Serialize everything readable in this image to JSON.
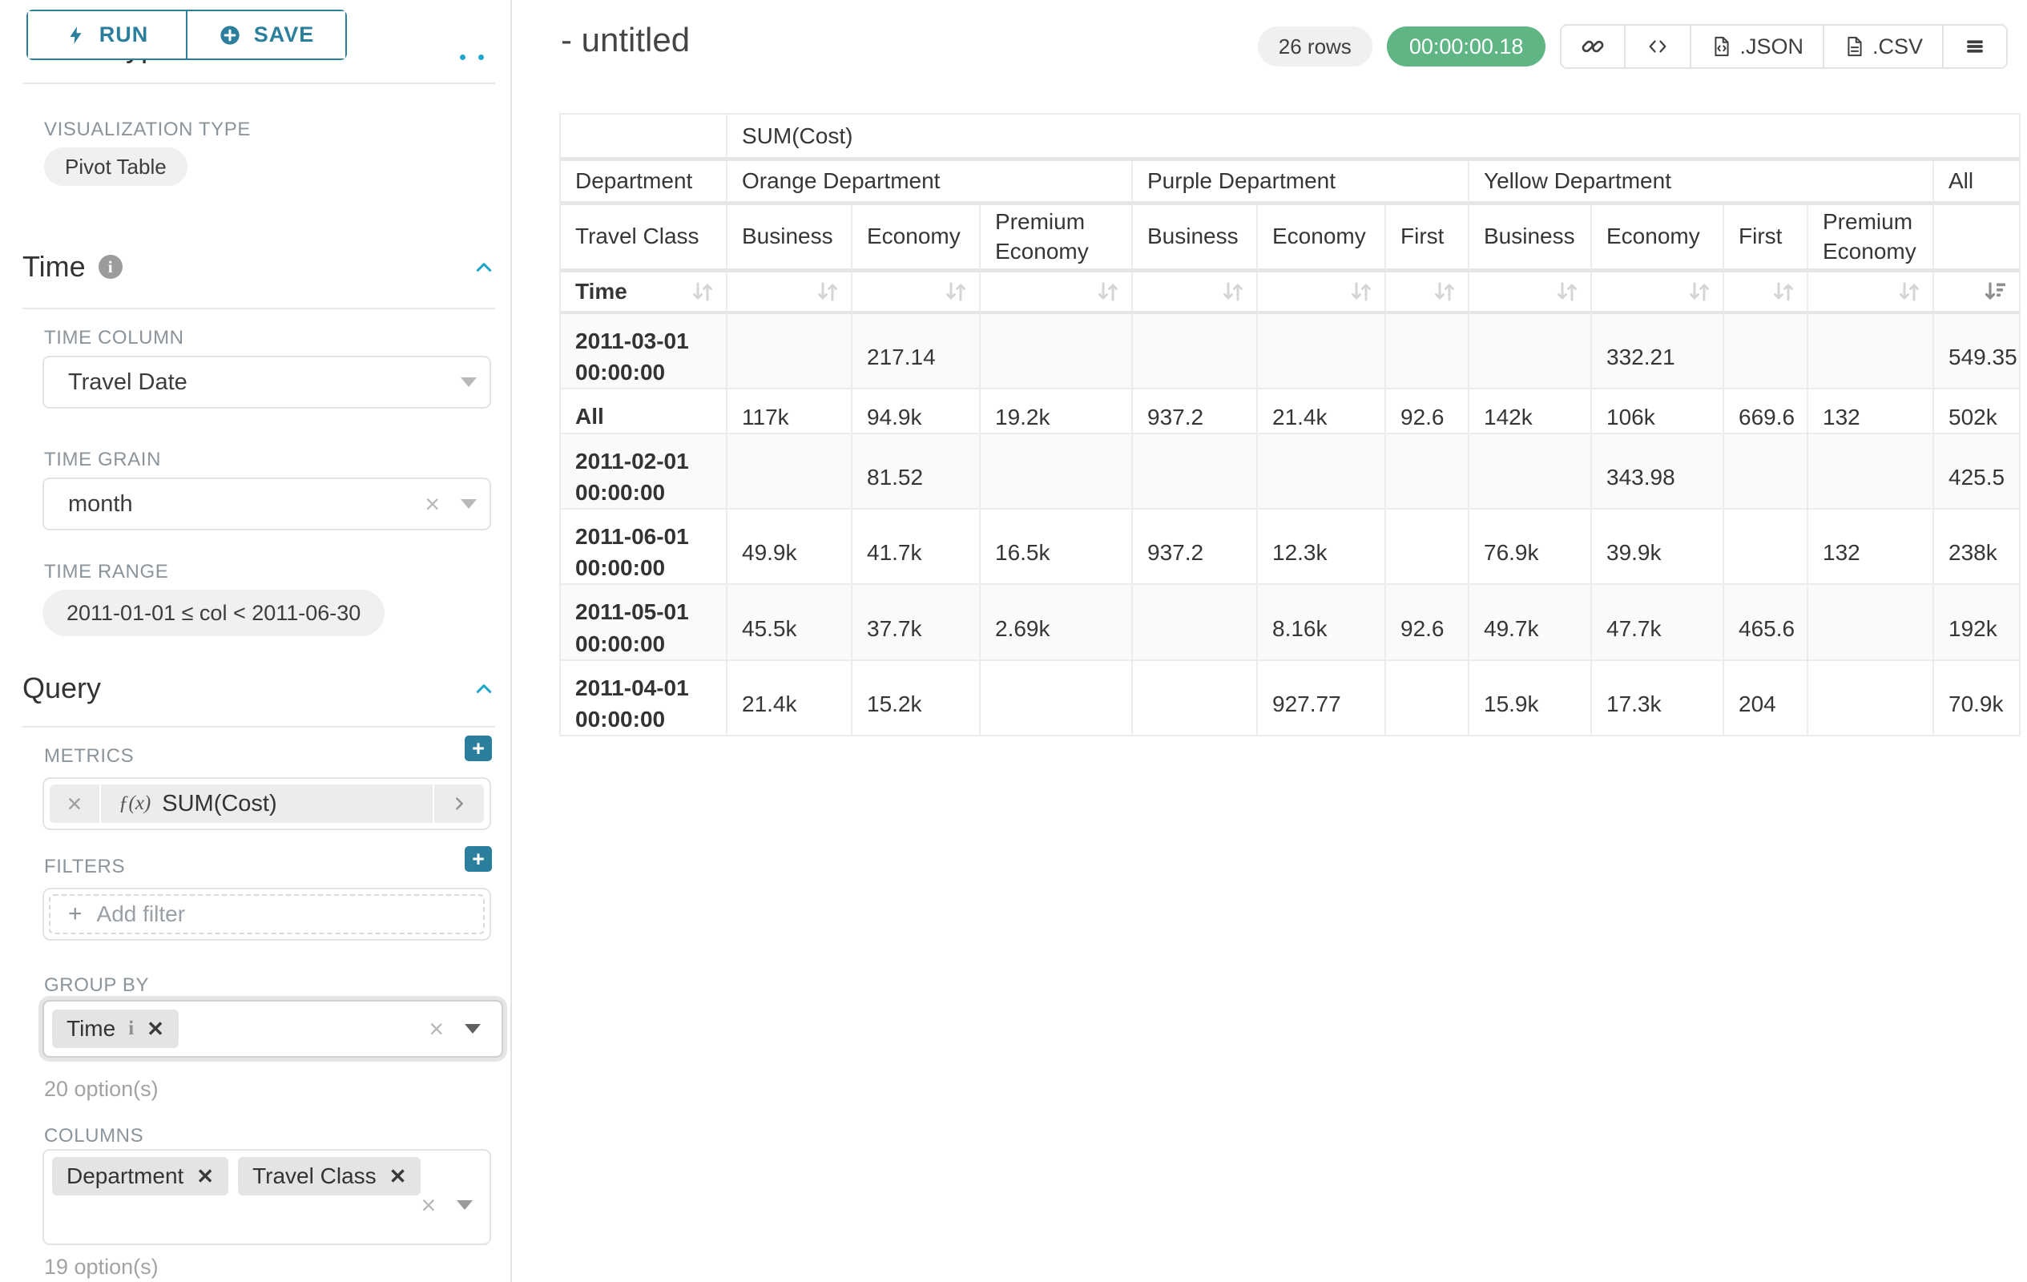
{
  "colors": {
    "teal": "#2b7f9d",
    "blue": "#20a7c9",
    "green": "#5fb584",
    "chip": "#e4e4e4",
    "border": "#e3e3e3",
    "label": "#8b949b",
    "text": "#363636",
    "muted": "#9c9c9c",
    "sort-light": "#d5d5d5",
    "sort-dark": "#8f8f8f",
    "stripe": "#fafafa",
    "pill": "#f0f0f0"
  },
  "sidebar": {
    "run_label": "RUN",
    "save_label": "SAVE",
    "chart_type_title": "Chart Type",
    "viz": {
      "label": "VISUALIZATION TYPE",
      "value": "Pivot Table"
    },
    "time": {
      "title": "Time",
      "column_label": "TIME COLUMN",
      "column_value": "Travel Date",
      "grain_label": "TIME GRAIN",
      "grain_value": "month",
      "range_label": "TIME RANGE",
      "range_value": "2011-01-01 ≤ col < 2011-06-30"
    },
    "query": {
      "title": "Query",
      "metrics_label": "METRICS",
      "metric_fx": "ƒ(x)",
      "metric_value": "SUM(Cost)",
      "filters_label": "FILTERS",
      "add_filter_label": "Add filter",
      "group_by_label": "GROUP BY",
      "group_by_chips": [
        {
          "label": "Time",
          "info": true
        }
      ],
      "group_by_options": "20 option(s)",
      "columns_label": "COLUMNS",
      "columns_chips": [
        {
          "label": "Department"
        },
        {
          "label": "Travel Class"
        }
      ],
      "columns_options": "19 option(s)"
    }
  },
  "header": {
    "title": "- untitled",
    "rows_badge": "26 rows",
    "timer_badge": "00:00:00.18",
    "export_json_label": ".JSON",
    "export_csv_label": ".CSV"
  },
  "chart_data": {
    "type": "table",
    "title": "SUM(Cost)",
    "corner_labels": {
      "row2": "Department",
      "row3": "Travel Class",
      "row4": "Time"
    },
    "column_groups": [
      {
        "label": "Orange Department",
        "children": [
          "Business",
          "Economy",
          "Premium Economy"
        ]
      },
      {
        "label": "Purple Department",
        "children": [
          "Business",
          "Economy",
          "First"
        ]
      },
      {
        "label": "Yellow Department",
        "children": [
          "Business",
          "Economy",
          "First",
          "Premium Economy"
        ]
      },
      {
        "label": "All",
        "children": [
          ""
        ]
      }
    ],
    "sort": {
      "column": "All",
      "direction": "desc"
    },
    "rows": [
      {
        "label": "2011-03-01 00:00:00",
        "values": [
          "",
          "217.14",
          "",
          "",
          "",
          "",
          "",
          "332.21",
          "",
          "",
          "549.35"
        ]
      },
      {
        "label": "All",
        "values": [
          "117k",
          "94.9k",
          "19.2k",
          "937.2",
          "21.4k",
          "92.6",
          "142k",
          "106k",
          "669.6",
          "132",
          "502k"
        ]
      },
      {
        "label": "2011-02-01 00:00:00",
        "values": [
          "",
          "81.52",
          "",
          "",
          "",
          "",
          "",
          "343.98",
          "",
          "",
          "425.5"
        ]
      },
      {
        "label": "2011-06-01 00:00:00",
        "values": [
          "49.9k",
          "41.7k",
          "16.5k",
          "937.2",
          "12.3k",
          "",
          "76.9k",
          "39.9k",
          "",
          "132",
          "238k"
        ]
      },
      {
        "label": "2011-05-01 00:00:00",
        "values": [
          "45.5k",
          "37.7k",
          "2.69k",
          "",
          "8.16k",
          "92.6",
          "49.7k",
          "47.7k",
          "465.6",
          "",
          "192k"
        ]
      },
      {
        "label": "2011-04-01 00:00:00",
        "values": [
          "21.4k",
          "15.2k",
          "",
          "",
          "927.77",
          "",
          "15.9k",
          "17.3k",
          "204",
          "",
          "70.9k"
        ]
      }
    ]
  }
}
